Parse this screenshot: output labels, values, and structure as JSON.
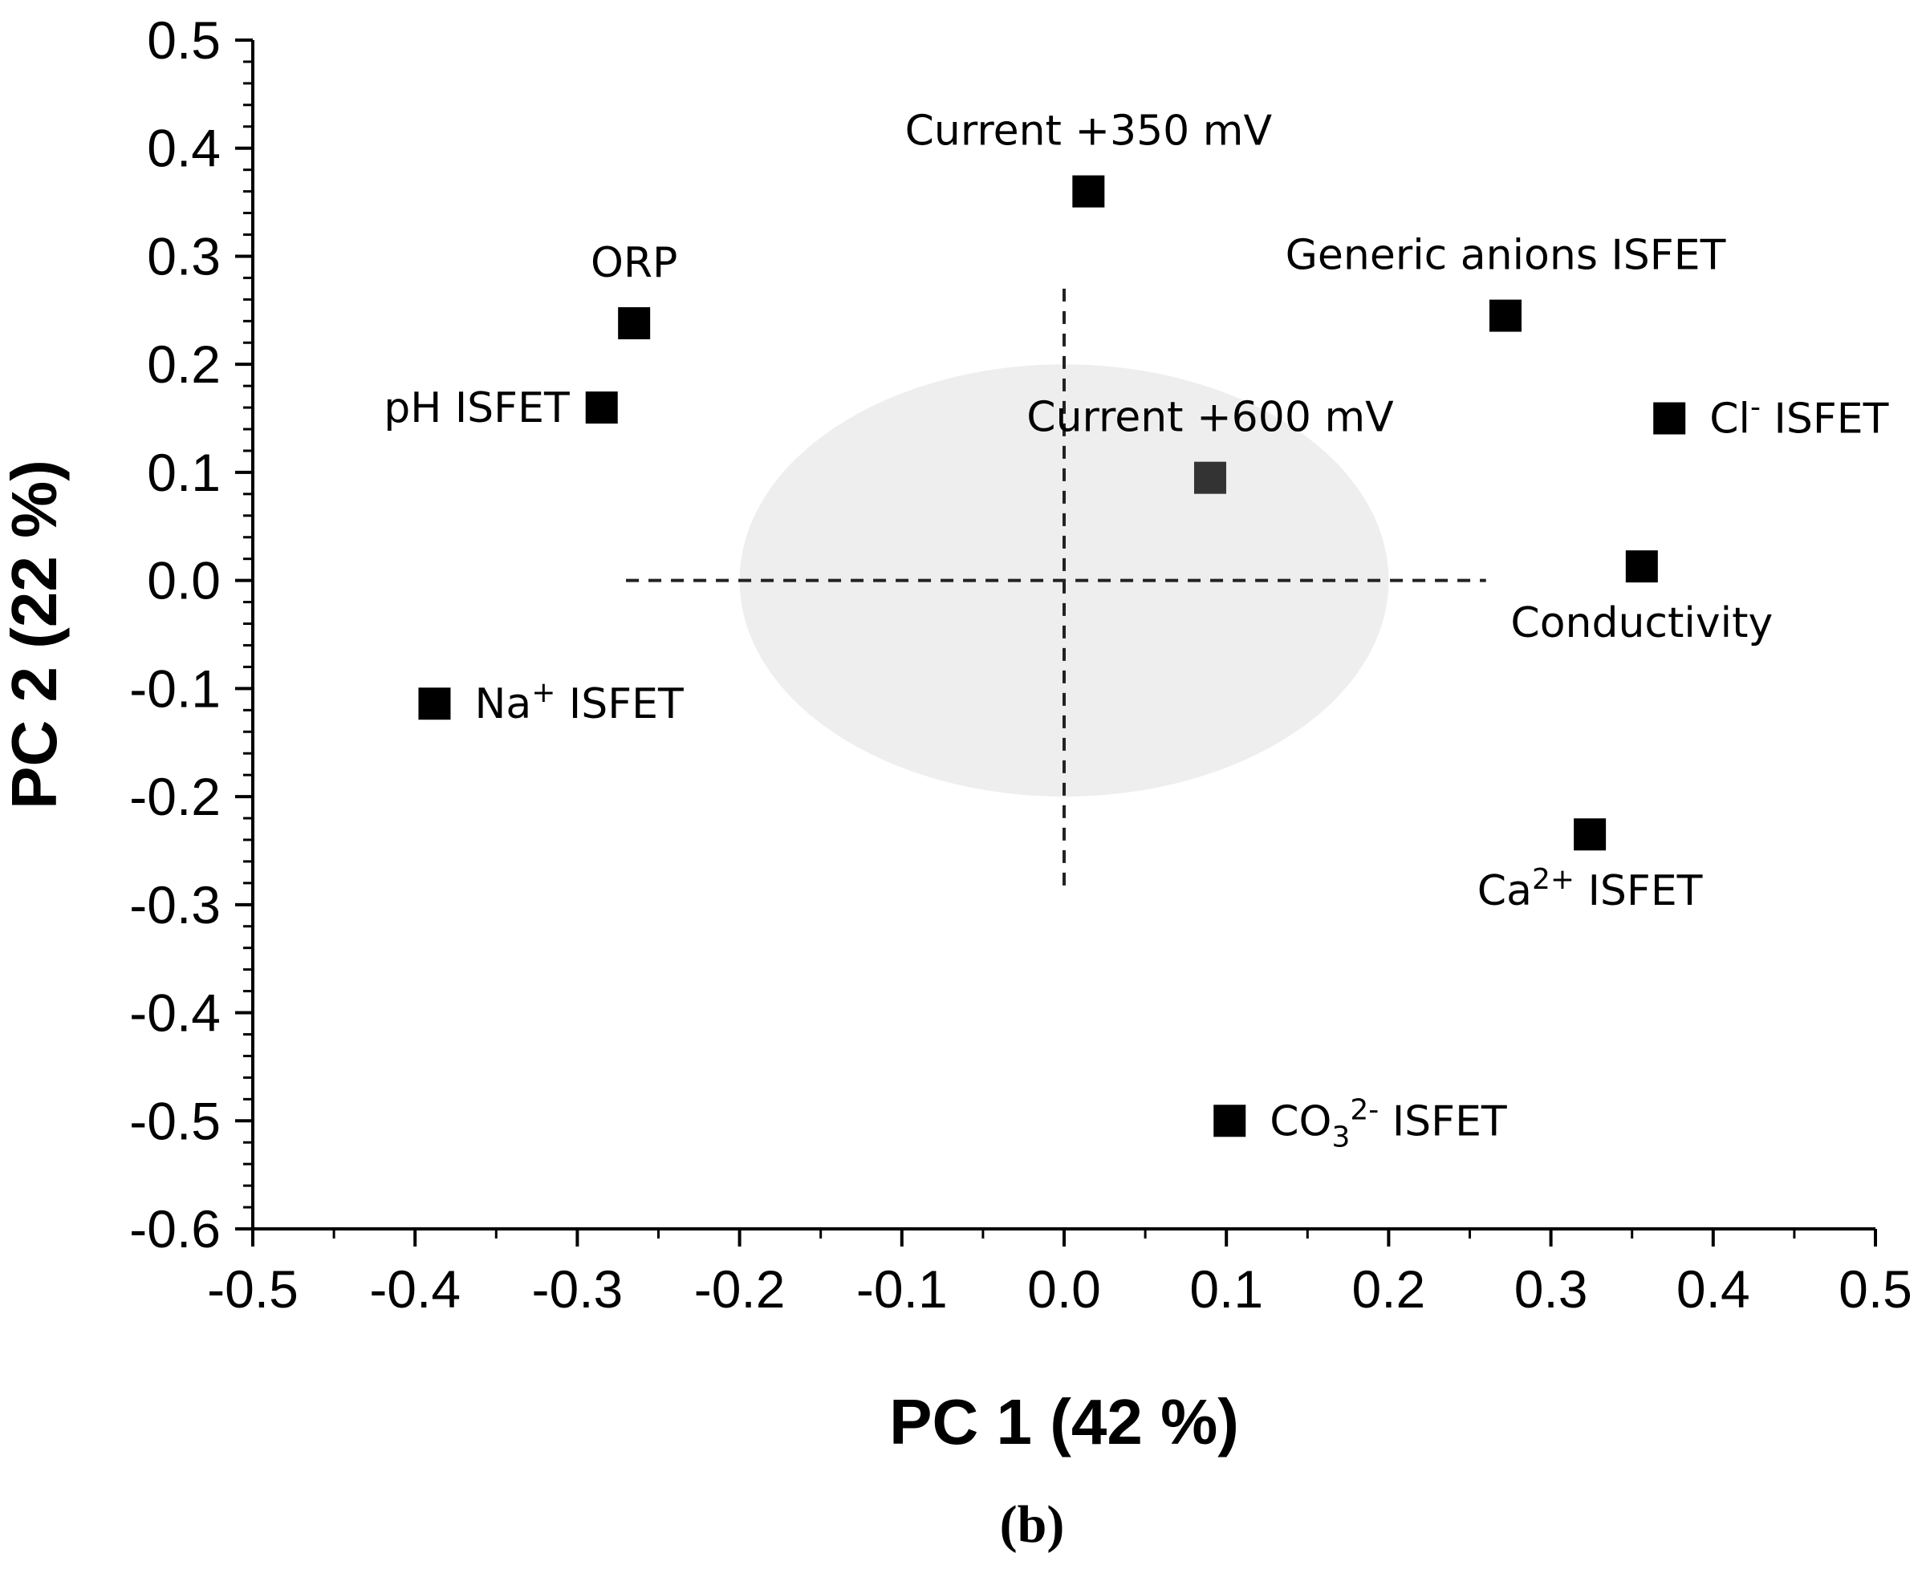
{
  "chart_data": {
    "type": "scatter",
    "xlabel": "PC 1 (42 %)",
    "ylabel": "PC 2 (22 %)",
    "caption": "(b)",
    "xlim": [
      -0.5,
      0.5
    ],
    "ylim": [
      -0.6,
      0.5
    ],
    "xticks": [
      -0.5,
      -0.4,
      -0.3,
      -0.2,
      -0.1,
      0.0,
      0.1,
      0.2,
      0.3,
      0.4,
      0.5
    ],
    "yticks": [
      0.5,
      0.4,
      0.3,
      0.2,
      0.1,
      0.0,
      -0.1,
      -0.2,
      -0.3,
      -0.4,
      -0.5,
      -0.6
    ],
    "xtick_labels": [
      "-0.5",
      "-0.4",
      "-0.3",
      "-0.2",
      "-0.1",
      "0.0",
      "0.1",
      "0.2",
      "0.3",
      "0.4",
      "0.5"
    ],
    "ytick_labels": [
      "0.5",
      "0.4",
      "0.3",
      "0.2",
      "0.1",
      "0.0",
      "-0.1",
      "-0.2",
      "-0.3",
      "-0.4",
      "-0.5",
      "-0.6"
    ],
    "grid": false,
    "marker_color": "#000000",
    "highlight_marker_color": "#333333",
    "ellipse_color": "#eeeeee",
    "ellipse": {
      "center": [
        0.0,
        0.0
      ],
      "radius_x": 0.2,
      "radius_y": 0.2
    },
    "reference_lines": {
      "horizontal_y": 0.0,
      "horizontal_x_range": [
        -0.27,
        0.26
      ],
      "vertical_x": 0.0,
      "vertical_y_range": [
        -0.29,
        0.27
      ]
    },
    "points": [
      {
        "id": "current-350",
        "x": 0.015,
        "y": 0.36,
        "label": "Current +350 mV",
        "sup": "",
        "sub": "",
        "after": "",
        "label_pos": "above"
      },
      {
        "id": "orp",
        "x": -0.265,
        "y": 0.238,
        "label": "ORP",
        "sup": "",
        "sub": "",
        "after": "",
        "label_pos": "above"
      },
      {
        "id": "generic-anions",
        "x": 0.272,
        "y": 0.245,
        "label": "Generic anions ISFET",
        "sup": "",
        "sub": "",
        "after": "",
        "label_pos": "above"
      },
      {
        "id": "ph-isfet",
        "x": -0.285,
        "y": 0.16,
        "label": "pH ISFET",
        "sup": "",
        "sub": "",
        "after": "",
        "label_pos": "left"
      },
      {
        "id": "cl-isfet",
        "x": 0.373,
        "y": 0.15,
        "label": "Cl",
        "sup": "-",
        "sub": "",
        "after": " ISFET",
        "label_pos": "right"
      },
      {
        "id": "current-600",
        "x": 0.09,
        "y": 0.095,
        "label": "Current +600 mV",
        "sup": "",
        "sub": "",
        "after": "",
        "label_pos": "above",
        "highlight": true
      },
      {
        "id": "conductivity",
        "x": 0.356,
        "y": 0.013,
        "label": "Conductivity",
        "sup": "",
        "sub": "",
        "after": "",
        "label_pos": "below"
      },
      {
        "id": "na-isfet",
        "x": -0.388,
        "y": -0.114,
        "label": "Na",
        "sup": "+",
        "sub": "",
        "after": " ISFET",
        "label_pos": "right"
      },
      {
        "id": "ca-isfet",
        "x": 0.324,
        "y": -0.235,
        "label": "Ca",
        "sup": "2+",
        "sub": "",
        "after": " ISFET",
        "label_pos": "below"
      },
      {
        "id": "co3-isfet",
        "x": 0.102,
        "y": -0.5,
        "label": "CO",
        "sub": "3",
        "sup": "2-",
        "after": " ISFET",
        "label_pos": "right"
      }
    ]
  }
}
